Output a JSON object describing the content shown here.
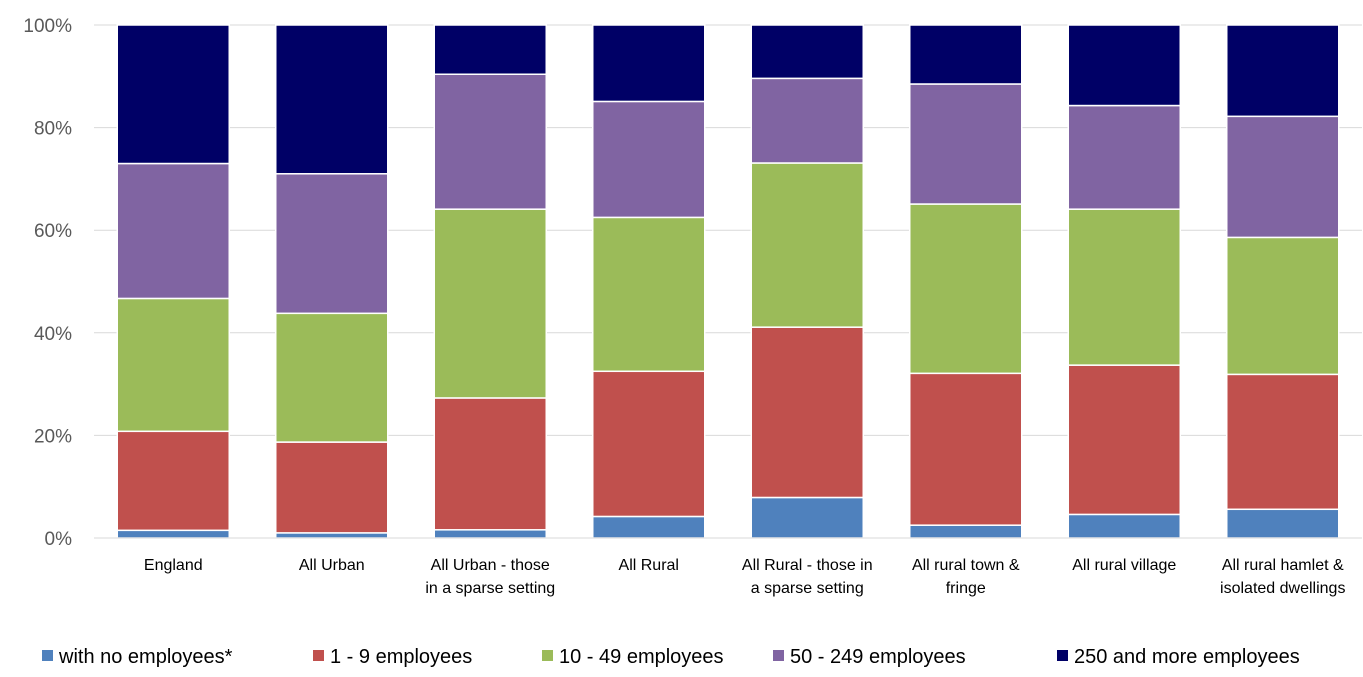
{
  "chart_data": {
    "type": "bar",
    "stacked": true,
    "percent": true,
    "title": "",
    "xlabel": "",
    "ylabel": "",
    "ylim": [
      0,
      100
    ],
    "y_ticks": [
      "0%",
      "20%",
      "40%",
      "60%",
      "80%",
      "100%"
    ],
    "grid": true,
    "legend_position": "bottom",
    "categories": [
      [
        "England"
      ],
      [
        "All Urban"
      ],
      [
        "All Urban - those",
        "in a sparse setting"
      ],
      [
        "All Rural"
      ],
      [
        "All Rural - those in",
        "a sparse setting"
      ],
      [
        "All rural town &",
        "fringe"
      ],
      [
        "All rural village"
      ],
      [
        "All rural hamlet &",
        "isolated dwellings"
      ]
    ],
    "series": [
      {
        "name": "with no employees*",
        "color": "#4f81bd",
        "values": [
          1.5,
          1.0,
          1.6,
          4.2,
          7.9,
          2.5,
          4.6,
          5.6
        ]
      },
      {
        "name": "1 - 9 employees",
        "color": "#c0504d",
        "values": [
          19.3,
          17.7,
          25.7,
          28.3,
          33.2,
          29.6,
          29.1,
          26.3
        ]
      },
      {
        "name": "10 - 49 employees",
        "color": "#9bbb59",
        "values": [
          25.9,
          25.1,
          36.8,
          30.0,
          32.0,
          33.0,
          30.4,
          26.7
        ]
      },
      {
        "name": "50 - 249 employees",
        "color": "#8064a2",
        "values": [
          26.3,
          27.2,
          26.3,
          22.6,
          16.5,
          23.4,
          20.2,
          23.6
        ]
      },
      {
        "name": "250 and more employees",
        "color": "#000066",
        "values": [
          27.0,
          29.0,
          9.6,
          14.9,
          10.4,
          11.5,
          15.7,
          17.8
        ]
      }
    ]
  }
}
